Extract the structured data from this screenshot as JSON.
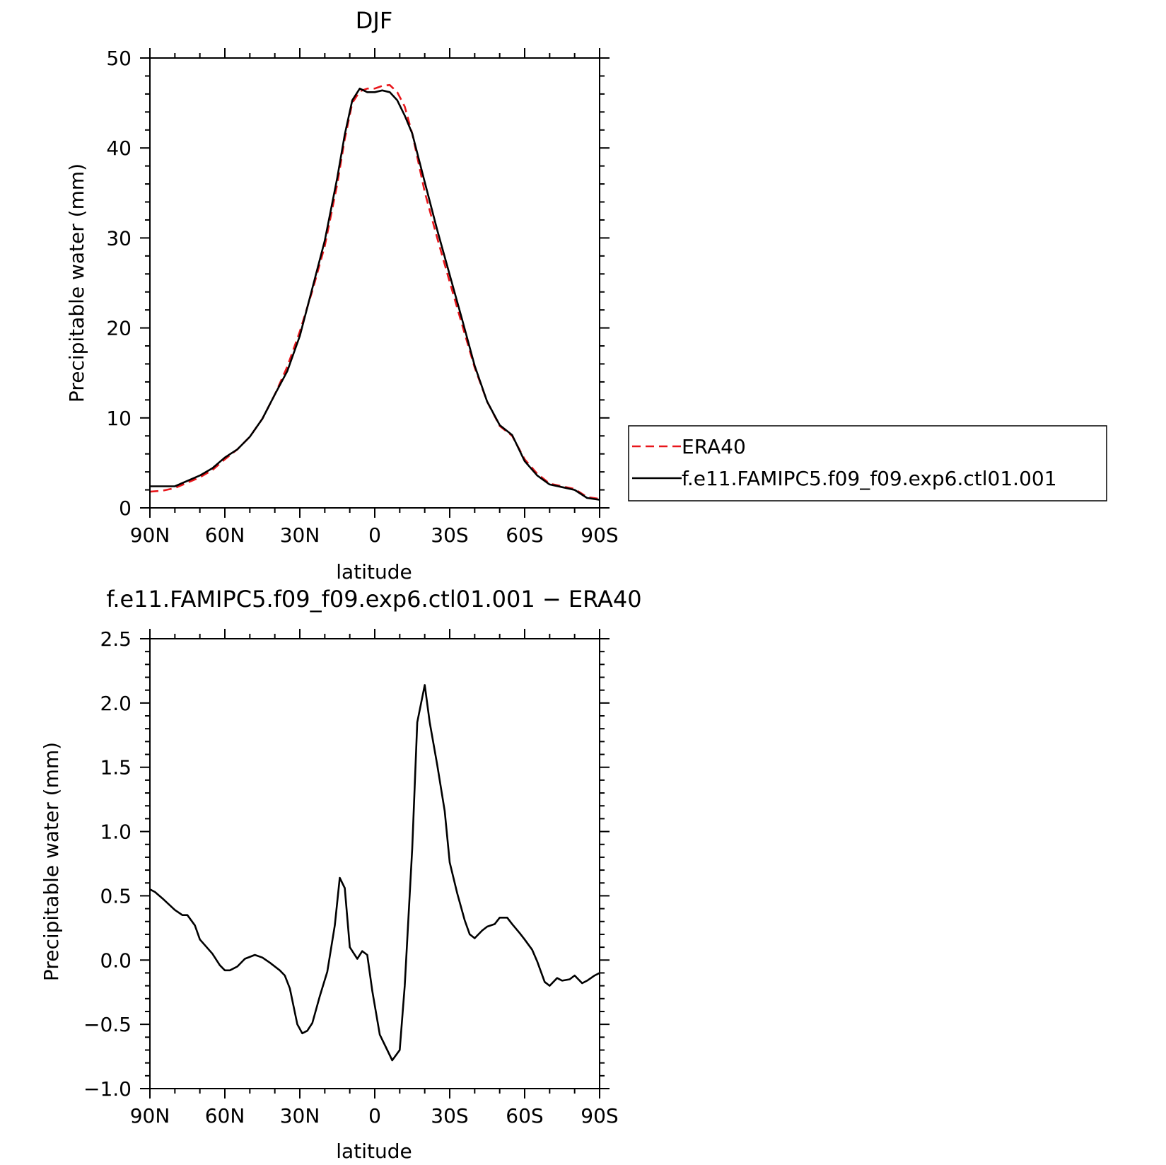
{
  "chart_data": [
    {
      "type": "line",
      "title": "DJF",
      "xlabel": "latitude",
      "ylabel": "Precipitable water (mm)",
      "xlim": [
        -90,
        90
      ],
      "ylim": [
        0,
        50
      ],
      "x_ticks": [
        -90,
        -60,
        -30,
        0,
        30,
        60,
        90
      ],
      "x_tick_labels": [
        "90N",
        "60N",
        "30N",
        "0",
        "30S",
        "60S",
        "90S"
      ],
      "y_ticks": [
        0,
        10,
        20,
        30,
        40,
        50
      ],
      "y_tick_labels": [
        "0",
        "10",
        "20",
        "30",
        "40",
        "50"
      ],
      "legend_position": "right",
      "series": [
        {
          "name": "ERA40",
          "color": "#e8161b",
          "dash": "dashed",
          "x": [
            -90,
            -85,
            -80,
            -75,
            -70,
            -65,
            -60,
            -55,
            -50,
            -45,
            -40,
            -35,
            -30,
            -25,
            -20,
            -15,
            -12,
            -9,
            -6,
            -3,
            0,
            3,
            6,
            9,
            12,
            15,
            20,
            25,
            30,
            35,
            40,
            45,
            50,
            55,
            60,
            65,
            70,
            75,
            80,
            85,
            90
          ],
          "y": [
            1.8,
            1.9,
            2.2,
            2.8,
            3.4,
            4.2,
            5.4,
            6.5,
            7.9,
            9.9,
            12.6,
            15.7,
            19.6,
            24.1,
            29.1,
            36.0,
            41.0,
            45.0,
            46.3,
            46.6,
            46.6,
            46.9,
            47.0,
            46.2,
            44.6,
            41.6,
            35.1,
            30.0,
            25.1,
            20.3,
            15.6,
            11.8,
            9.1,
            8.0,
            5.4,
            3.8,
            2.7,
            2.4,
            2.1,
            1.2,
            1.0
          ]
        },
        {
          "name": "f.e11.FAMIPC5.f09_f09.exp6.ctl01.001",
          "color": "#000000",
          "dash": "solid",
          "x": [
            -90,
            -85,
            -80,
            -75,
            -70,
            -65,
            -60,
            -55,
            -50,
            -45,
            -40,
            -35,
            -30,
            -25,
            -20,
            -15,
            -12,
            -9,
            -6,
            -3,
            0,
            3,
            6,
            9,
            12,
            15,
            20,
            25,
            30,
            35,
            40,
            45,
            50,
            55,
            60,
            65,
            70,
            75,
            80,
            85,
            90
          ],
          "y": [
            2.4,
            2.4,
            2.4,
            3.0,
            3.6,
            4.4,
            5.6,
            6.5,
            7.9,
            9.9,
            12.6,
            15.2,
            19.1,
            24.4,
            29.7,
            36.7,
            41.5,
            45.3,
            46.6,
            46.2,
            46.2,
            46.4,
            46.2,
            45.3,
            43.6,
            41.6,
            36.2,
            30.9,
            25.9,
            20.9,
            15.8,
            11.8,
            9.2,
            8.1,
            5.2,
            3.6,
            2.6,
            2.3,
            2.0,
            1.1,
            0.9
          ]
        }
      ]
    },
    {
      "type": "line",
      "title": "f.e11.FAMIPC5.f09_f09.exp6.ctl01.001 − ERA40",
      "xlabel": "latitude",
      "ylabel": "Precipitable water (mm)",
      "xlim": [
        -90,
        90
      ],
      "ylim": [
        -1.0,
        2.5
      ],
      "x_ticks": [
        -90,
        -60,
        -30,
        0,
        30,
        60,
        90
      ],
      "x_tick_labels": [
        "90N",
        "60N",
        "30N",
        "0",
        "30S",
        "60S",
        "90S"
      ],
      "y_ticks": [
        -1.0,
        -0.5,
        0.0,
        0.5,
        1.0,
        1.5,
        2.0,
        2.5
      ],
      "y_tick_labels": [
        "−1.0",
        "−0.5",
        "0.0",
        "0.5",
        "1.0",
        "1.5",
        "2.0",
        "2.5"
      ],
      "series": [
        {
          "color": "#000000",
          "dash": "solid",
          "x": [
            -90,
            -88,
            -85,
            -80,
            -77,
            -75,
            -72,
            -70,
            -65,
            -62,
            -60,
            -58,
            -55,
            -52,
            -48,
            -45,
            -42,
            -38,
            -36,
            -34,
            -31,
            -29,
            -27,
            -25,
            -22,
            -19,
            -16,
            -14,
            -12,
            -10,
            -7,
            -5,
            -3,
            -1,
            2,
            5,
            7,
            10,
            12,
            15,
            17,
            20,
            22,
            25,
            28,
            30,
            33,
            36,
            38,
            40,
            43,
            45,
            48,
            50,
            53,
            55,
            58,
            60,
            63,
            65,
            68,
            70,
            73,
            75,
            78,
            80,
            83,
            85,
            88,
            90
          ],
          "y": [
            0.55,
            0.53,
            0.48,
            0.39,
            0.35,
            0.35,
            0.27,
            0.16,
            0.05,
            -0.04,
            -0.08,
            -0.08,
            -0.05,
            0.01,
            0.04,
            0.02,
            -0.02,
            -0.08,
            -0.12,
            -0.22,
            -0.5,
            -0.57,
            -0.55,
            -0.49,
            -0.28,
            -0.09,
            0.27,
            0.64,
            0.56,
            0.1,
            0.01,
            0.07,
            0.04,
            -0.24,
            -0.58,
            -0.7,
            -0.78,
            -0.7,
            -0.2,
            0.87,
            1.85,
            2.14,
            1.85,
            1.52,
            1.16,
            0.76,
            0.52,
            0.31,
            0.2,
            0.17,
            0.23,
            0.26,
            0.28,
            0.33,
            0.33,
            0.28,
            0.21,
            0.16,
            0.08,
            -0.01,
            -0.17,
            -0.2,
            -0.14,
            -0.16,
            -0.15,
            -0.12,
            -0.18,
            -0.16,
            -0.12,
            -0.1
          ]
        }
      ]
    }
  ]
}
